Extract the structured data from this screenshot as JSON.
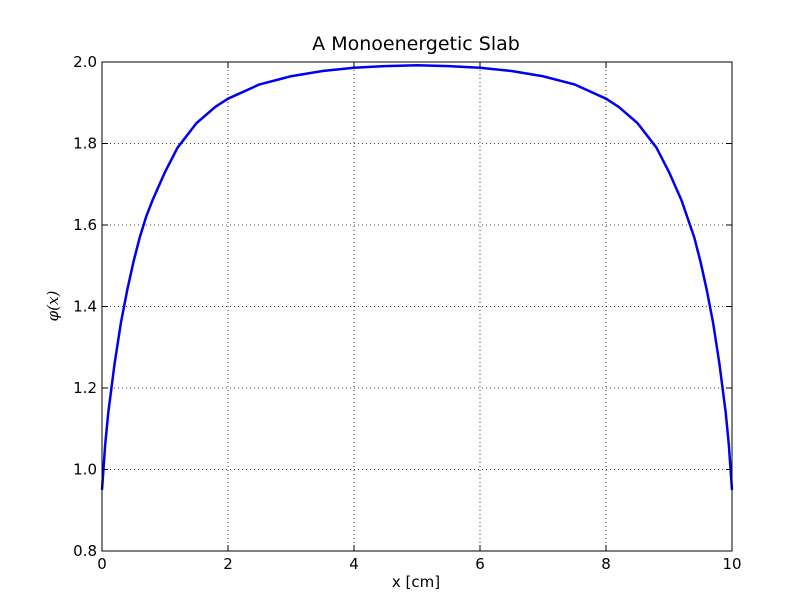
{
  "chart_data": {
    "type": "line",
    "title": "A Monoenergetic Slab",
    "xlabel": "x [cm]",
    "ylabel": "φ(x)",
    "xlim": [
      0,
      10
    ],
    "ylim": [
      0.8,
      2.0
    ],
    "xticks": [
      0,
      2,
      4,
      6,
      8,
      10
    ],
    "yticks": [
      0.8,
      1.0,
      1.2,
      1.4,
      1.6,
      1.8,
      2.0
    ],
    "xtick_labels": [
      "0",
      "2",
      "4",
      "6",
      "8",
      "10"
    ],
    "ytick_labels": [
      "0.8",
      "1.0",
      "1.2",
      "1.4",
      "1.6",
      "1.8",
      "2.0"
    ],
    "grid": true,
    "series": [
      {
        "color": "#0000ee",
        "x": [
          0,
          0.05,
          0.1,
          0.2,
          0.3,
          0.4,
          0.5,
          0.6,
          0.7,
          0.8,
          1.0,
          1.2,
          1.5,
          1.8,
          2.0,
          2.5,
          3.0,
          3.5,
          4.0,
          4.5,
          5.0,
          5.5,
          6.0,
          6.5,
          7.0,
          7.5,
          8.0,
          8.2,
          8.5,
          8.8,
          9.0,
          9.2,
          9.4,
          9.5,
          9.6,
          9.7,
          9.8,
          9.9,
          9.95,
          10.0
        ],
        "y": [
          0.95,
          1.06,
          1.14,
          1.26,
          1.36,
          1.44,
          1.51,
          1.57,
          1.62,
          1.66,
          1.73,
          1.79,
          1.85,
          1.89,
          1.91,
          1.945,
          1.965,
          1.978,
          1.986,
          1.99,
          1.992,
          1.99,
          1.986,
          1.978,
          1.965,
          1.945,
          1.91,
          1.89,
          1.85,
          1.79,
          1.73,
          1.66,
          1.57,
          1.51,
          1.44,
          1.36,
          1.26,
          1.14,
          1.06,
          0.95
        ]
      }
    ]
  }
}
